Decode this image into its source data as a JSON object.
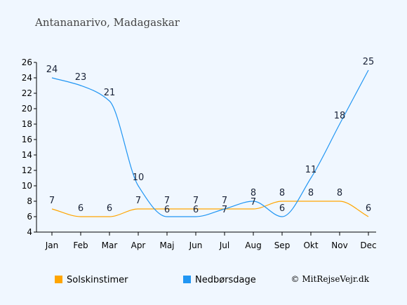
{
  "chart_data": {
    "type": "line",
    "title": "Antananarivo, Madagaskar",
    "categories": [
      "Jan",
      "Feb",
      "Mar",
      "Apr",
      "Maj",
      "Jun",
      "Jul",
      "Aug",
      "Sep",
      "Okt",
      "Nov",
      "Dec"
    ],
    "ylim": [
      4,
      26
    ],
    "yticks": [
      4,
      6,
      8,
      10,
      12,
      14,
      16,
      18,
      20,
      22,
      24,
      26
    ],
    "grid": false,
    "legend_position": "bottom",
    "series": [
      {
        "name": "Solskinstimer",
        "color": "#ffa500",
        "values": [
          7,
          6,
          6,
          7,
          7,
          7,
          7,
          7,
          8,
          8,
          8,
          6
        ]
      },
      {
        "name": "Nedbørsdage",
        "color": "#2196f3",
        "values": [
          24,
          23,
          21,
          10,
          6,
          6,
          7,
          8,
          6,
          11,
          18,
          25
        ]
      }
    ]
  },
  "copyright": "© MitRejseVejr.dk"
}
